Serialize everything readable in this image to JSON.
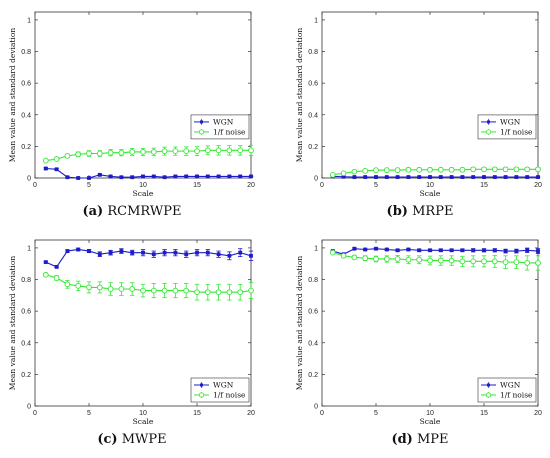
{
  "colors": {
    "wgn": "#1c1cc8",
    "pink": "#33e833",
    "axis": "#333333"
  },
  "chart_data": [
    {
      "type": "line",
      "panel": "a",
      "caption": {
        "letter": "(a)",
        "name": "RCMRWPE"
      },
      "xlabel": "Scale",
      "ylabel": "Mean value and standard deviation",
      "xlim": [
        0,
        20
      ],
      "ylim": [
        0,
        1.05
      ],
      "xticks": [
        0,
        5,
        10,
        15,
        20
      ],
      "yticks": [
        "0",
        "0.2",
        "0.4",
        "0.6",
        "0.8",
        "1"
      ],
      "legend_position": "right-middle",
      "x": [
        1,
        2,
        3,
        4,
        5,
        6,
        7,
        8,
        9,
        10,
        11,
        12,
        13,
        14,
        15,
        16,
        17,
        18,
        19,
        20
      ],
      "series": [
        {
          "name": "WGN",
          "marker": "square",
          "values": [
            0.06,
            0.055,
            0.005,
            0.0,
            0.0,
            0.02,
            0.01,
            0.005,
            0.005,
            0.01,
            0.01,
            0.005,
            0.01,
            0.01,
            0.01,
            0.01,
            0.01,
            0.01,
            0.01,
            0.01
          ],
          "err": [
            0.005,
            0.005,
            0.004,
            0.003,
            0.003,
            0.004,
            0.004,
            0.003,
            0.003,
            0.003,
            0.003,
            0.003,
            0.003,
            0.003,
            0.003,
            0.003,
            0.003,
            0.003,
            0.003,
            0.003
          ]
        },
        {
          "name": "1/f noise",
          "marker": "circle",
          "values": [
            0.11,
            0.12,
            0.14,
            0.15,
            0.155,
            0.155,
            0.16,
            0.16,
            0.165,
            0.165,
            0.165,
            0.17,
            0.17,
            0.17,
            0.17,
            0.175,
            0.175,
            0.175,
            0.175,
            0.175
          ],
          "err": [
            0.005,
            0.008,
            0.012,
            0.015,
            0.018,
            0.018,
            0.02,
            0.02,
            0.022,
            0.022,
            0.024,
            0.025,
            0.026,
            0.027,
            0.028,
            0.028,
            0.03,
            0.03,
            0.03,
            0.032
          ]
        }
      ]
    },
    {
      "type": "line",
      "panel": "b",
      "caption": {
        "letter": "(b)",
        "name": "MRPE"
      },
      "xlabel": "Scale",
      "ylabel": "Mean value and standard deviation",
      "xlim": [
        0,
        20
      ],
      "ylim": [
        0,
        1.05
      ],
      "xticks": [
        0,
        5,
        10,
        15,
        20
      ],
      "yticks": [
        "0",
        "0.2",
        "0.4",
        "0.6",
        "0.8",
        "1"
      ],
      "legend_position": "right-middle",
      "x": [
        1,
        2,
        3,
        4,
        5,
        6,
        7,
        8,
        9,
        10,
        11,
        12,
        13,
        14,
        15,
        16,
        17,
        18,
        19,
        20
      ],
      "series": [
        {
          "name": "WGN",
          "marker": "square",
          "values": [
            0.01,
            0.008,
            0.006,
            0.006,
            0.006,
            0.006,
            0.006,
            0.006,
            0.006,
            0.006,
            0.006,
            0.006,
            0.006,
            0.006,
            0.006,
            0.006,
            0.006,
            0.006,
            0.006,
            0.006
          ],
          "err": [
            0.002,
            0.002,
            0.002,
            0.002,
            0.002,
            0.002,
            0.002,
            0.002,
            0.002,
            0.002,
            0.002,
            0.002,
            0.002,
            0.002,
            0.002,
            0.002,
            0.002,
            0.002,
            0.002,
            0.002
          ]
        },
        {
          "name": "1/f noise",
          "marker": "circle",
          "values": [
            0.02,
            0.03,
            0.04,
            0.045,
            0.05,
            0.05,
            0.05,
            0.052,
            0.052,
            0.052,
            0.052,
            0.052,
            0.052,
            0.055,
            0.055,
            0.055,
            0.055,
            0.055,
            0.055,
            0.055
          ],
          "err": [
            0.004,
            0.006,
            0.008,
            0.01,
            0.01,
            0.012,
            0.012,
            0.012,
            0.012,
            0.012,
            0.012,
            0.012,
            0.012,
            0.012,
            0.012,
            0.012,
            0.012,
            0.012,
            0.012,
            0.012
          ]
        }
      ]
    },
    {
      "type": "line",
      "panel": "c",
      "caption": {
        "letter": "(c)",
        "name": "MWPE"
      },
      "xlabel": "Scale",
      "ylabel": "Mean value and standard deviation",
      "xlim": [
        0,
        20
      ],
      "ylim": [
        0,
        1.05
      ],
      "xticks": [
        0,
        5,
        10,
        15,
        20
      ],
      "yticks": [
        "0",
        "0.2",
        "0.4",
        "0.6",
        "0.8",
        "1"
      ],
      "legend_position": "bottom-right",
      "x": [
        1,
        2,
        3,
        4,
        5,
        6,
        7,
        8,
        9,
        10,
        11,
        12,
        13,
        14,
        15,
        16,
        17,
        18,
        19,
        20
      ],
      "series": [
        {
          "name": "WGN",
          "marker": "square",
          "values": [
            0.91,
            0.88,
            0.98,
            0.99,
            0.98,
            0.96,
            0.97,
            0.98,
            0.97,
            0.97,
            0.96,
            0.97,
            0.97,
            0.96,
            0.97,
            0.97,
            0.96,
            0.95,
            0.97,
            0.95
          ],
          "err": [
            0.005,
            0.005,
            0.008,
            0.008,
            0.01,
            0.015,
            0.015,
            0.015,
            0.015,
            0.02,
            0.02,
            0.02,
            0.02,
            0.02,
            0.02,
            0.02,
            0.02,
            0.025,
            0.025,
            0.03
          ]
        },
        {
          "name": "1/f noise",
          "marker": "circle",
          "values": [
            0.83,
            0.81,
            0.77,
            0.76,
            0.75,
            0.75,
            0.74,
            0.74,
            0.74,
            0.73,
            0.73,
            0.73,
            0.73,
            0.73,
            0.72,
            0.72,
            0.72,
            0.72,
            0.72,
            0.73
          ],
          "err": [
            0.01,
            0.015,
            0.025,
            0.03,
            0.035,
            0.035,
            0.04,
            0.04,
            0.04,
            0.04,
            0.045,
            0.045,
            0.045,
            0.045,
            0.05,
            0.05,
            0.05,
            0.05,
            0.05,
            0.05
          ]
        }
      ]
    },
    {
      "type": "line",
      "panel": "d",
      "caption": {
        "letter": "(d)",
        "name": "MPE"
      },
      "xlabel": "Scale",
      "ylabel": "Mean value and standard deviation",
      "xlim": [
        0,
        20
      ],
      "ylim": [
        0,
        1.05
      ],
      "xticks": [
        0,
        5,
        10,
        15,
        20
      ],
      "yticks": [
        "0",
        "0.2",
        "0.4",
        "0.6",
        "0.8",
        "1"
      ],
      "legend_position": "bottom-right",
      "x": [
        1,
        2,
        3,
        4,
        5,
        6,
        7,
        8,
        9,
        10,
        11,
        12,
        13,
        14,
        15,
        16,
        17,
        18,
        19,
        20
      ],
      "series": [
        {
          "name": "WGN",
          "marker": "square",
          "values": [
            0.98,
            0.96,
            0.995,
            0.99,
            0.995,
            0.99,
            0.985,
            0.99,
            0.985,
            0.985,
            0.985,
            0.985,
            0.985,
            0.985,
            0.985,
            0.985,
            0.98,
            0.98,
            0.985,
            0.98
          ],
          "err": [
            0.005,
            0.005,
            0.005,
            0.005,
            0.006,
            0.006,
            0.006,
            0.006,
            0.007,
            0.007,
            0.008,
            0.008,
            0.008,
            0.01,
            0.01,
            0.01,
            0.012,
            0.012,
            0.014,
            0.015
          ]
        },
        {
          "name": "1/f noise",
          "marker": "circle",
          "values": [
            0.97,
            0.95,
            0.94,
            0.935,
            0.93,
            0.93,
            0.93,
            0.925,
            0.925,
            0.92,
            0.92,
            0.92,
            0.915,
            0.915,
            0.915,
            0.915,
            0.91,
            0.91,
            0.905,
            0.905
          ],
          "err": [
            0.008,
            0.01,
            0.012,
            0.015,
            0.018,
            0.02,
            0.022,
            0.025,
            0.025,
            0.028,
            0.03,
            0.03,
            0.032,
            0.035,
            0.035,
            0.038,
            0.04,
            0.04,
            0.045,
            0.045
          ]
        }
      ]
    }
  ]
}
